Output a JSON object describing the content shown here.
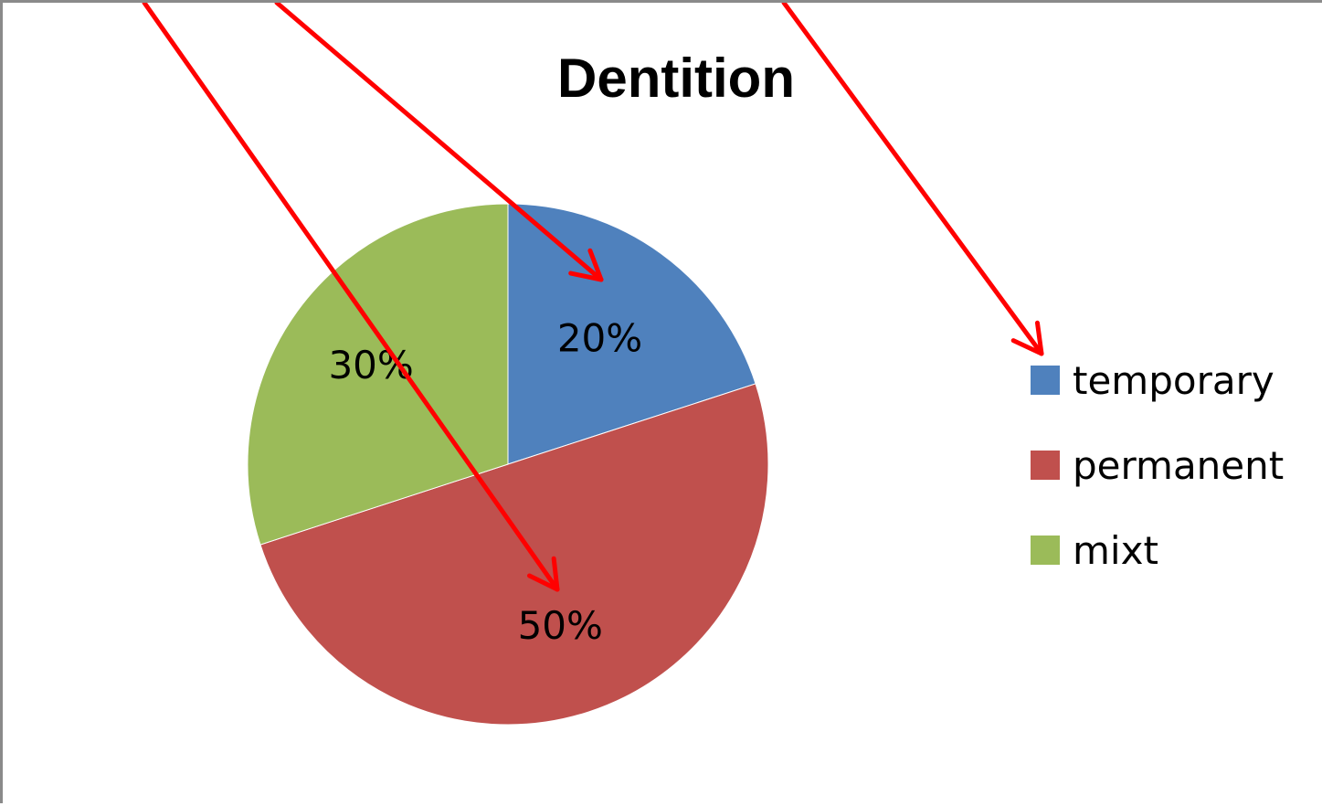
{
  "chart_data": {
    "type": "pie",
    "title": "Dentition",
    "categories": [
      "temporary",
      "permanent",
      "mixt"
    ],
    "values": [
      20,
      50,
      30
    ],
    "data_labels": [
      "20%",
      "50%",
      "30%"
    ],
    "colors": [
      "#4F81BD",
      "#C0504D",
      "#9BBB59"
    ],
    "legend_placement": "right",
    "annotation_color": "#FF0000"
  }
}
